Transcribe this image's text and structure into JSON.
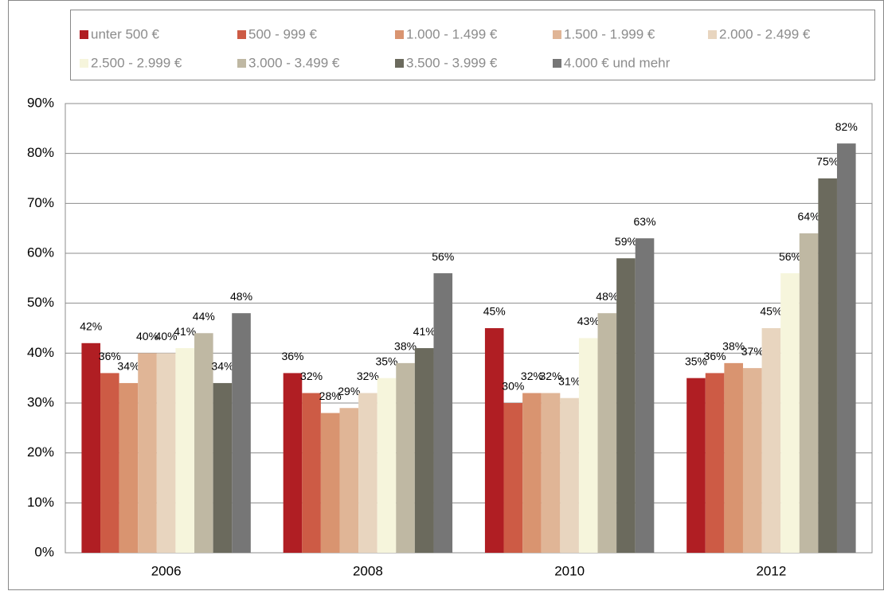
{
  "chart_data": {
    "type": "bar",
    "categories": [
      "2006",
      "2008",
      "2010",
      "2012"
    ],
    "series": [
      {
        "name": "unter 500 €",
        "color": "#b01e23",
        "values": [
          42,
          36,
          45,
          35
        ],
        "value_labels": [
          "42%",
          "36%",
          "45%",
          "35%"
        ]
      },
      {
        "name": "500 - 999 €",
        "color": "#cd5b45",
        "values": [
          36,
          32,
          30,
          36
        ],
        "value_labels": [
          "36%",
          "32%",
          "30%",
          "36%"
        ]
      },
      {
        "name": "1.000 - 1.499 €",
        "color": "#d99470",
        "values": [
          34,
          28,
          32,
          38
        ],
        "value_labels": [
          "34%",
          "28%",
          "32%",
          "38%"
        ]
      },
      {
        "name": "1.500 - 1.999 €",
        "color": "#e0b596",
        "values": [
          40,
          29,
          32,
          37
        ],
        "value_labels": [
          "40%",
          "29%",
          "32%",
          "37%"
        ]
      },
      {
        "name": "2.000 - 2.499 €",
        "color": "#e8d5bf",
        "values": [
          40,
          32,
          31,
          45
        ],
        "value_labels": [
          "40%",
          "32%",
          "31%",
          "45%"
        ]
      },
      {
        "name": "2.500 - 2.999 €",
        "color": "#f6f5dc",
        "values": [
          41,
          35,
          43,
          56
        ],
        "value_labels": [
          "41%",
          "35%",
          "43%",
          "56%"
        ]
      },
      {
        "name": "3.000 - 3.499 €",
        "color": "#bfb8a3",
        "values": [
          44,
          38,
          48,
          64
        ],
        "value_labels": [
          "44%",
          "38%",
          "48%",
          "64%"
        ]
      },
      {
        "name": "3.500 - 3.999 €",
        "color": "#6b6a5d",
        "values": [
          34,
          41,
          59,
          75
        ],
        "value_labels": [
          "34%",
          "41%",
          "59%",
          "75%"
        ]
      },
      {
        "name": "4.000 € und mehr",
        "color": "#767676",
        "values": [
          48,
          56,
          63,
          82
        ],
        "value_labels": [
          "48%",
          "56%",
          "63%",
          "82%"
        ]
      }
    ],
    "ylim": [
      0,
      90
    ],
    "yticks": [
      {
        "value": 0,
        "label": "0%"
      },
      {
        "value": 10,
        "label": "10%"
      },
      {
        "value": 20,
        "label": "20%"
      },
      {
        "value": 30,
        "label": "30%"
      },
      {
        "value": 40,
        "label": "40%"
      },
      {
        "value": 50,
        "label": "50%"
      },
      {
        "value": 60,
        "label": "60%"
      },
      {
        "value": 70,
        "label": "70%"
      },
      {
        "value": 80,
        "label": "80%"
      },
      {
        "value": 90,
        "label": "90%"
      }
    ],
    "grid": true,
    "legend": "top"
  }
}
